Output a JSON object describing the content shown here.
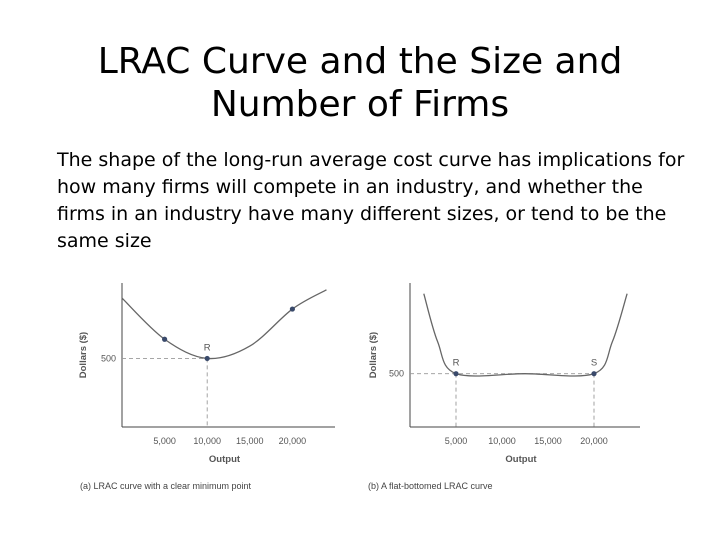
{
  "slide": {
    "title": "LRAC Curve and the Size and Number of Firms",
    "body": "The shape of the long-run average cost curve has implications for how many firms will compete in an industry, and whether the firms in an industry have many different sizes, or tend to be the same size"
  },
  "chart_data": [
    {
      "type": "line",
      "caption": "(a) LRAC curve with a clear minimum point",
      "xlabel": "Output",
      "ylabel": "Dollars ($)",
      "x_ticks": [
        "5,000",
        "10,000",
        "15,000",
        "20,000"
      ],
      "y_ticks": [
        "500"
      ],
      "xlim": [
        0,
        25000
      ],
      "ylim": [
        0,
        1050
      ],
      "series": [
        {
          "x": [
            0,
            5000,
            10000,
            15000,
            20000,
            24000
          ],
          "y": [
            940,
            640,
            500,
            590,
            860,
            1000
          ]
        }
      ],
      "points": [
        {
          "label": "",
          "x": 5000,
          "y": 640
        },
        {
          "label": "R",
          "x": 10000,
          "y": 500
        },
        {
          "label": "",
          "x": 20000,
          "y": 860
        }
      ],
      "guides_at": [
        10000
      ],
      "colors": {
        "curve": "#666666",
        "point": "#3a4a6b"
      }
    },
    {
      "type": "line",
      "caption": "(b) A flat-bottomed LRAC curve",
      "xlabel": "Output",
      "ylabel": "Dollars ($)",
      "x_ticks": [
        "5,000",
        "10,000",
        "15,000",
        "20,000"
      ],
      "y_ticks": [
        "500"
      ],
      "xlim": [
        0,
        25000
      ],
      "ylim": [
        0,
        1350
      ],
      "series": [
        {
          "x": [
            1500,
            3000,
            5000,
            12500,
            20000,
            22000,
            23600
          ],
          "y": [
            1250,
            800,
            500,
            500,
            500,
            800,
            1250
          ]
        }
      ],
      "points": [
        {
          "label": "R",
          "x": 5000,
          "y": 500
        },
        {
          "label": "S",
          "x": 20000,
          "y": 500
        }
      ],
      "guides_at": [
        5000,
        20000
      ],
      "colors": {
        "curve": "#666666",
        "point": "#3a4a6b"
      }
    }
  ]
}
